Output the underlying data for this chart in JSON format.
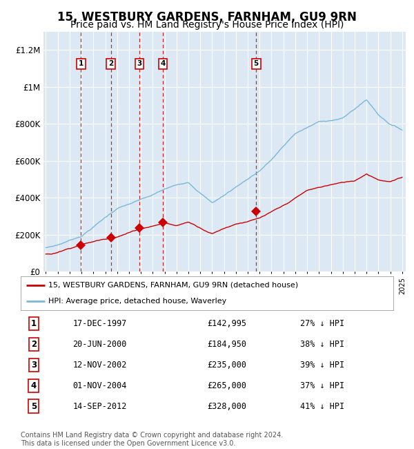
{
  "title": "15, WESTBURY GARDENS, FARNHAM, GU9 9RN",
  "subtitle": "Price paid vs. HM Land Registry's House Price Index (HPI)",
  "title_fontsize": 12,
  "subtitle_fontsize": 10,
  "background_color": "#ffffff",
  "plot_bg_color": "#dce9f5",
  "grid_color": "#ffffff",
  "sale_color": "#cc0000",
  "hpi_color": "#7ab8d8",
  "ylim": [
    0,
    1300000
  ],
  "yticks": [
    0,
    200000,
    400000,
    600000,
    800000,
    1000000,
    1200000
  ],
  "ytick_labels": [
    "£0",
    "£200K",
    "£400K",
    "£600K",
    "£800K",
    "£1M",
    "£1.2M"
  ],
  "sale_dates": [
    1997.96,
    2000.47,
    2002.87,
    2004.84,
    2012.71
  ],
  "sale_prices": [
    142995,
    184950,
    235000,
    265000,
    328000
  ],
  "sale_labels": [
    "1",
    "2",
    "3",
    "4",
    "5"
  ],
  "legend_sale_label": "15, WESTBURY GARDENS, FARNHAM, GU9 9RN (detached house)",
  "legend_hpi_label": "HPI: Average price, detached house, Waverley",
  "table_rows": [
    [
      "1",
      "17-DEC-1997",
      "£142,995",
      "27% ↓ HPI"
    ],
    [
      "2",
      "20-JUN-2000",
      "£184,950",
      "38% ↓ HPI"
    ],
    [
      "3",
      "12-NOV-2002",
      "£235,000",
      "39% ↓ HPI"
    ],
    [
      "4",
      "01-NOV-2004",
      "£265,000",
      "37% ↓ HPI"
    ],
    [
      "5",
      "14-SEP-2012",
      "£328,000",
      "41% ↓ HPI"
    ]
  ],
  "footnote": "Contains HM Land Registry data © Crown copyright and database right 2024.\nThis data is licensed under the Open Government Licence v3.0.",
  "xmin": 1994.8,
  "xmax": 2025.3
}
